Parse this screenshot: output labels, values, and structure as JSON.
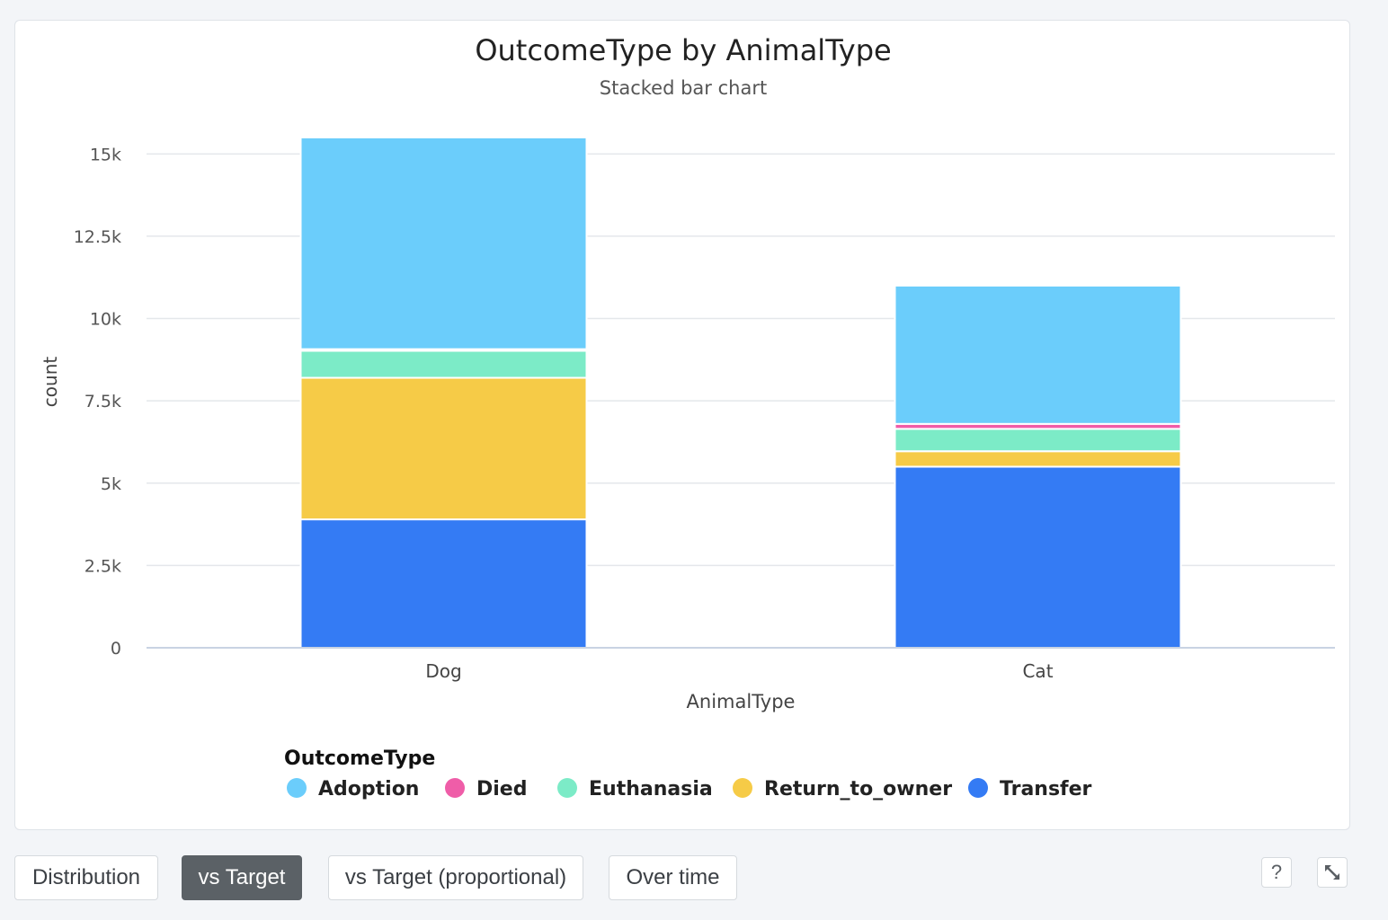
{
  "chart_data": {
    "type": "bar",
    "stacked": true,
    "title": "OutcomeType by AnimalType",
    "subtitle": "Stacked bar chart",
    "xlabel": "AnimalType",
    "ylabel": "count",
    "ylim": [
      0,
      15500
    ],
    "yticks": [
      0,
      2500,
      5000,
      7500,
      10000,
      12500,
      15000
    ],
    "ytick_labels": [
      "0",
      "2.5k",
      "5k",
      "7.5k",
      "10k",
      "12.5k",
      "15k"
    ],
    "categories": [
      "Dog",
      "Cat"
    ],
    "legend_title": "OutcomeType",
    "legend_position": "bottom",
    "grid": true,
    "series": [
      {
        "name": "Transfer",
        "color": "#347bf4",
        "values": [
          3900,
          5500
        ]
      },
      {
        "name": "Return_to_owner",
        "color": "#f6cb47",
        "values": [
          4300,
          470
        ]
      },
      {
        "name": "Euthanasia",
        "color": "#7cebc7",
        "values": [
          820,
          680
        ]
      },
      {
        "name": "Died",
        "color": "#ef5da8",
        "values": [
          50,
          150
        ]
      },
      {
        "name": "Adoption",
        "color": "#6bcdfb",
        "values": [
          6430,
          4200
        ]
      }
    ],
    "legend_order": [
      "Adoption",
      "Died",
      "Euthanasia",
      "Return_to_owner",
      "Transfer"
    ]
  },
  "buttons": {
    "distribution": "Distribution",
    "vs_target": "vs Target",
    "vs_target_proportional": "vs Target (proportional)",
    "over_time": "Over time",
    "help": "?"
  },
  "icons": {
    "help": "help-icon",
    "expand": "expand-icon"
  }
}
